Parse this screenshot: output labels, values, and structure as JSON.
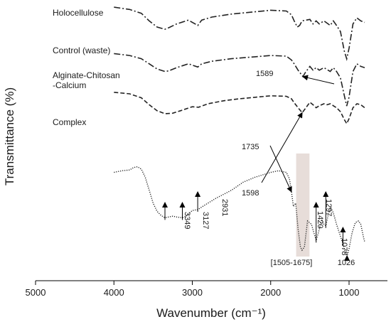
{
  "chart_data": {
    "type": "line",
    "xlabel": "Wavenumber (cm⁻¹)",
    "ylabel": "Transmittance (%)",
    "xlim": [
      5000,
      0
    ],
    "x_reversed": true,
    "x_ticks": [
      "5000",
      "4000",
      "3000",
      "2000",
      "1000"
    ],
    "y_ticks_shown": false,
    "grid": false,
    "legend": "none (series labelled directly on plot)",
    "series": [
      {
        "name": "Holocellulose",
        "line_style": "dash-dot",
        "points": [
          [
            4000,
            0.99
          ],
          [
            3800,
            0.975
          ],
          [
            3650,
            0.95
          ],
          [
            3550,
            0.9
          ],
          [
            3450,
            0.86
          ],
          [
            3350,
            0.845
          ],
          [
            3300,
            0.855
          ],
          [
            3200,
            0.88
          ],
          [
            3050,
            0.905
          ],
          [
            2930,
            0.87
          ],
          [
            2880,
            0.905
          ],
          [
            2750,
            0.925
          ],
          [
            2500,
            0.945
          ],
          [
            2200,
            0.96
          ],
          [
            2000,
            0.97
          ],
          [
            1800,
            0.965
          ],
          [
            1735,
            0.94
          ],
          [
            1700,
            0.9
          ],
          [
            1660,
            0.86
          ],
          [
            1630,
            0.87
          ],
          [
            1600,
            0.9
          ],
          [
            1500,
            0.91
          ],
          [
            1460,
            0.88
          ],
          [
            1420,
            0.9
          ],
          [
            1380,
            0.88
          ],
          [
            1320,
            0.9
          ],
          [
            1240,
            0.87
          ],
          [
            1200,
            0.9
          ],
          [
            1160,
            0.87
          ],
          [
            1110,
            0.83
          ],
          [
            1060,
            0.7
          ],
          [
            1030,
            0.65
          ],
          [
            1000,
            0.72
          ],
          [
            950,
            0.88
          ],
          [
            900,
            0.92
          ],
          [
            850,
            0.9
          ],
          [
            800,
            0.89
          ]
        ]
      },
      {
        "name": "Control (waste)",
        "line_style": "dash-dot",
        "points": [
          [
            4000,
            0.87
          ],
          [
            3800,
            0.855
          ],
          [
            3650,
            0.83
          ],
          [
            3550,
            0.79
          ],
          [
            3450,
            0.75
          ],
          [
            3350,
            0.73
          ],
          [
            3300,
            0.735
          ],
          [
            3200,
            0.76
          ],
          [
            3050,
            0.79
          ],
          [
            2930,
            0.765
          ],
          [
            2880,
            0.79
          ],
          [
            2750,
            0.81
          ],
          [
            2500,
            0.83
          ],
          [
            2200,
            0.845
          ],
          [
            2000,
            0.855
          ],
          [
            1800,
            0.85
          ],
          [
            1735,
            0.82
          ],
          [
            1700,
            0.79
          ],
          [
            1650,
            0.74
          ],
          [
            1589,
            0.69
          ],
          [
            1560,
            0.72
          ],
          [
            1500,
            0.77
          ],
          [
            1460,
            0.74
          ],
          [
            1420,
            0.76
          ],
          [
            1380,
            0.74
          ],
          [
            1320,
            0.76
          ],
          [
            1240,
            0.73
          ],
          [
            1200,
            0.76
          ],
          [
            1160,
            0.73
          ],
          [
            1110,
            0.68
          ],
          [
            1060,
            0.54
          ],
          [
            1030,
            0.46
          ],
          [
            1000,
            0.53
          ],
          [
            950,
            0.73
          ],
          [
            900,
            0.79
          ],
          [
            850,
            0.77
          ],
          [
            800,
            0.76
          ]
        ]
      },
      {
        "name": "Alginate-Chitosan -Calcium",
        "line_style": "dashed",
        "points": [
          [
            4000,
            0.715
          ],
          [
            3800,
            0.7
          ],
          [
            3650,
            0.66
          ],
          [
            3550,
            0.59
          ],
          [
            3450,
            0.53
          ],
          [
            3350,
            0.5
          ],
          [
            3250,
            0.505
          ],
          [
            3150,
            0.53
          ],
          [
            3000,
            0.57
          ],
          [
            2920,
            0.565
          ],
          [
            2800,
            0.6
          ],
          [
            2600,
            0.63
          ],
          [
            2400,
            0.65
          ],
          [
            2200,
            0.665
          ],
          [
            2000,
            0.68
          ],
          [
            1800,
            0.675
          ],
          [
            1735,
            0.65
          ],
          [
            1700,
            0.61
          ],
          [
            1650,
            0.56
          ],
          [
            1598,
            0.51
          ],
          [
            1560,
            0.55
          ],
          [
            1500,
            0.615
          ],
          [
            1460,
            0.59
          ],
          [
            1420,
            0.56
          ],
          [
            1380,
            0.58
          ],
          [
            1320,
            0.6
          ],
          [
            1280,
            0.59
          ],
          [
            1240,
            0.6
          ],
          [
            1200,
            0.58
          ],
          [
            1160,
            0.56
          ],
          [
            1110,
            0.52
          ],
          [
            1060,
            0.44
          ],
          [
            1030,
            0.4
          ],
          [
            1000,
            0.45
          ],
          [
            950,
            0.56
          ],
          [
            900,
            0.6
          ],
          [
            850,
            0.59
          ],
          [
            800,
            0.56
          ]
        ]
      },
      {
        "name": "Complex",
        "line_style": "dotted",
        "points": [
          [
            4000,
            0.55
          ],
          [
            3900,
            0.56
          ],
          [
            3800,
            0.565
          ],
          [
            3750,
            0.58
          ],
          [
            3700,
            0.585
          ],
          [
            3650,
            0.57
          ],
          [
            3600,
            0.52
          ],
          [
            3550,
            0.44
          ],
          [
            3500,
            0.36
          ],
          [
            3450,
            0.31
          ],
          [
            3400,
            0.285
          ],
          [
            3349,
            0.27
          ],
          [
            3300,
            0.275
          ],
          [
            3250,
            0.28
          ],
          [
            3200,
            0.275
          ],
          [
            3127,
            0.27
          ],
          [
            3080,
            0.28
          ],
          [
            3000,
            0.315
          ],
          [
            2931,
            0.32
          ],
          [
            2850,
            0.345
          ],
          [
            2700,
            0.39
          ],
          [
            2500,
            0.44
          ],
          [
            2350,
            0.49
          ],
          [
            2300,
            0.5
          ],
          [
            2200,
            0.52
          ],
          [
            2000,
            0.55
          ],
          [
            1900,
            0.56
          ],
          [
            1800,
            0.55
          ],
          [
            1760,
            0.51
          ],
          [
            1735,
            0.43
          ],
          [
            1710,
            0.34
          ],
          [
            1680,
            0.36
          ],
          [
            1650,
            0.2
          ],
          [
            1620,
            0.09
          ],
          [
            1600,
            0.07
          ],
          [
            1570,
            0.09
          ],
          [
            1530,
            0.25
          ],
          [
            1480,
            0.23
          ],
          [
            1450,
            0.18
          ],
          [
            1420,
            0.13
          ],
          [
            1390,
            0.18
          ],
          [
            1350,
            0.26
          ],
          [
            1320,
            0.23
          ],
          [
            1297,
            0.22
          ],
          [
            1260,
            0.3
          ],
          [
            1230,
            0.33
          ],
          [
            1200,
            0.3
          ],
          [
            1160,
            0.23
          ],
          [
            1120,
            0.17
          ],
          [
            1078,
            0.11
          ],
          [
            1050,
            0.06
          ],
          [
            1026,
            0.03
          ],
          [
            1000,
            0.08
          ],
          [
            960,
            0.18
          ],
          [
            920,
            0.24
          ],
          [
            880,
            0.25
          ],
          [
            850,
            0.23
          ],
          [
            820,
            0.16
          ],
          [
            800,
            0.12
          ]
        ]
      }
    ],
    "annotations": [
      {
        "text": "1589",
        "x": 1589,
        "series": "Control (waste)"
      },
      {
        "text": "1735",
        "x": 1735,
        "series": "Complex"
      },
      {
        "text": "1598",
        "x": 1598,
        "series": "Alginate-Chitosan -Calcium"
      },
      {
        "text": "3349",
        "x": 3349,
        "series": "Complex"
      },
      {
        "text": "3127",
        "x": 3127,
        "series": "Complex"
      },
      {
        "text": "2931",
        "x": 2931,
        "series": "Complex"
      },
      {
        "text": "1420",
        "x": 1420,
        "series": "Complex"
      },
      {
        "text": "1297",
        "x": 1297,
        "series": "Complex"
      },
      {
        "text": "1078",
        "x": 1078,
        "series": "Complex"
      },
      {
        "text": "1026",
        "x": 1026,
        "series": "Complex"
      }
    ],
    "shaded_region": {
      "label": "[1505-1675]",
      "x_range": [
        1675,
        1505
      ],
      "color": "#e7ddd9"
    }
  }
}
